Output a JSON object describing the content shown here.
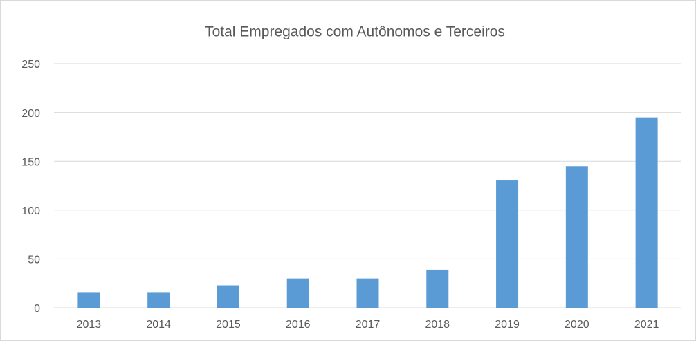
{
  "chart_data": {
    "type": "bar",
    "title": "Total Empregados com Autônomos e Terceiros",
    "categories": [
      "2013",
      "2014",
      "2015",
      "2016",
      "2017",
      "2018",
      "2019",
      "2020",
      "2021"
    ],
    "values": [
      16,
      16,
      23,
      30,
      30,
      39,
      131,
      145,
      195
    ],
    "color": "#5b9bd5",
    "ylim": [
      0,
      250
    ],
    "yticks": [
      0,
      50,
      100,
      150,
      200,
      250
    ],
    "grid": true
  }
}
